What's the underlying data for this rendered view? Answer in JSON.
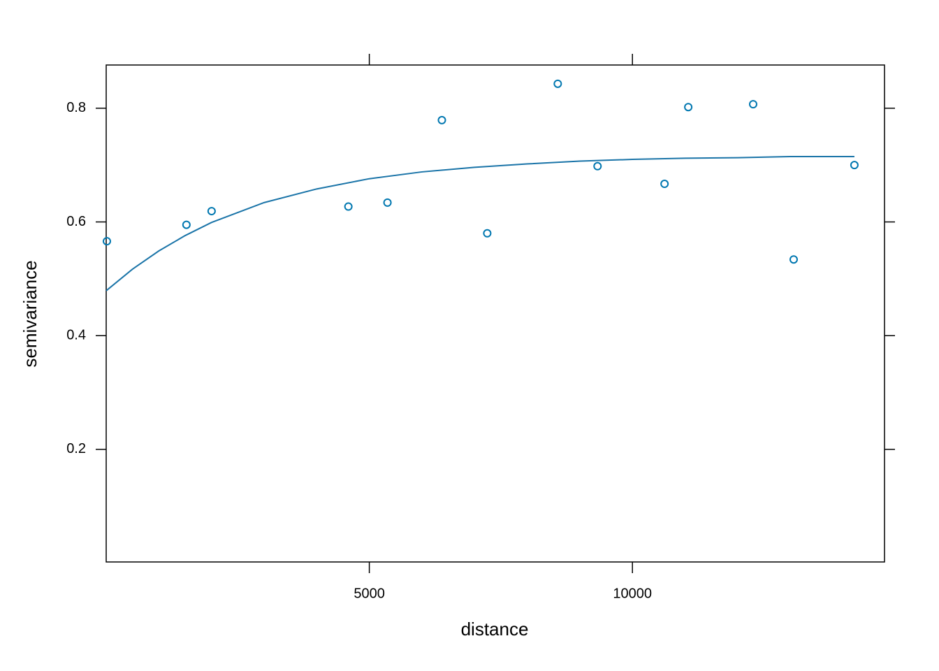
{
  "chart_data": {
    "type": "scatter",
    "x_label": "distance",
    "y_label": "semivariance",
    "xlim": [
      0,
      14790
    ],
    "ylim": [
      0.002,
      0.876
    ],
    "xticks": [
      5000,
      10000
    ],
    "yticks": [
      0.2,
      0.4,
      0.6,
      0.8
    ],
    "series": [
      {
        "type": "scatter",
        "color": "#0077b0",
        "x": [
          13,
          1525,
          2003,
          4602,
          5345,
          6379,
          7241,
          8581,
          9337,
          10610,
          11061,
          12294,
          13064,
          14218
        ],
        "values": [
          0.566,
          0.595,
          0.619,
          0.627,
          0.634,
          0.779,
          0.58,
          0.843,
          0.698,
          0.667,
          0.802,
          0.807,
          0.534,
          0.7
        ]
      },
      {
        "type": "line",
        "color": "#1a74a8",
        "x": [
          0,
          500,
          1000,
          1500,
          2000,
          3000,
          4000,
          5000,
          6000,
          7000,
          8000,
          9000,
          10000,
          11000,
          12000,
          13000,
          14218
        ],
        "values": [
          0.479,
          0.517,
          0.549,
          0.576,
          0.599,
          0.634,
          0.658,
          0.676,
          0.688,
          0.696,
          0.702,
          0.707,
          0.71,
          0.712,
          0.713,
          0.715,
          0.715
        ]
      }
    ]
  }
}
